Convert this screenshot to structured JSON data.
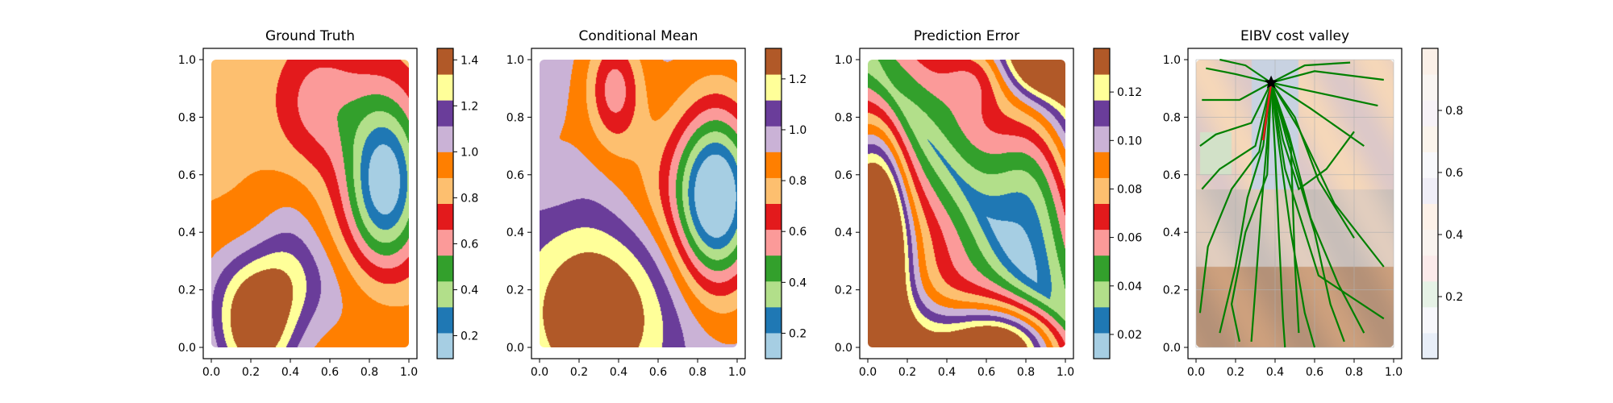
{
  "figure": {
    "panels_count": 4
  },
  "palette": {
    "paired12": [
      "#a6cee3",
      "#1f78b4",
      "#b2df8a",
      "#33a02c",
      "#fb9a99",
      "#e31a1c",
      "#fdbf6f",
      "#ff7f00",
      "#cab2d6",
      "#6a3d9a",
      "#ffff99",
      "#b15928"
    ],
    "path_color": "#008000",
    "highlight_color": "#e31a1c",
    "marker_color": "#000000"
  },
  "chart_data": [
    {
      "type": "heatmap",
      "title": "Ground Truth",
      "field": "ground_truth",
      "xlim": [
        0,
        1
      ],
      "ylim": [
        0,
        1
      ],
      "xticks": [
        "0.0",
        "0.2",
        "0.4",
        "0.6",
        "0.8",
        "1.0"
      ],
      "yticks": [
        "0.0",
        "0.2",
        "0.4",
        "0.6",
        "0.8",
        "1.0"
      ],
      "colorbar": {
        "range": [
          0.1,
          1.45
        ],
        "ticks": [
          "0.2",
          "0.4",
          "0.6",
          "0.8",
          "1.0",
          "1.2",
          "1.4"
        ],
        "tick_values": [
          0.2,
          0.4,
          0.6,
          0.8,
          1.0,
          1.2,
          1.4
        ]
      }
    },
    {
      "type": "heatmap",
      "title": "Conditional Mean",
      "field": "conditional_mean",
      "xlim": [
        0,
        1
      ],
      "ylim": [
        0,
        1
      ],
      "xticks": [
        "0.0",
        "0.2",
        "0.4",
        "0.6",
        "0.8",
        "1.0"
      ],
      "yticks": [
        "0.0",
        "0.2",
        "0.4",
        "0.6",
        "0.8",
        "1.0"
      ],
      "colorbar": {
        "range": [
          0.1,
          1.32
        ],
        "ticks": [
          "0.2",
          "0.4",
          "0.6",
          "0.8",
          "1.0",
          "1.2"
        ],
        "tick_values": [
          0.2,
          0.4,
          0.6,
          0.8,
          1.0,
          1.2
        ]
      }
    },
    {
      "type": "heatmap",
      "title": "Prediction Error",
      "field": "prediction_error",
      "xlim": [
        0,
        1
      ],
      "ylim": [
        0,
        1
      ],
      "xticks": [
        "0.0",
        "0.2",
        "0.4",
        "0.6",
        "0.8",
        "1.0"
      ],
      "yticks": [
        "0.0",
        "0.2",
        "0.4",
        "0.6",
        "0.8",
        "1.0"
      ],
      "colorbar": {
        "range": [
          0.01,
          0.138
        ],
        "ticks": [
          "0.02",
          "0.04",
          "0.06",
          "0.08",
          "0.10",
          "0.12"
        ],
        "tick_values": [
          0.02,
          0.04,
          0.06,
          0.08,
          0.1,
          0.12
        ]
      }
    },
    {
      "type": "heatmap",
      "title": "EIBV cost valley",
      "field": "cost_valley",
      "xlim": [
        0,
        1
      ],
      "ylim": [
        0,
        1
      ],
      "xticks": [
        "0.0",
        "0.2",
        "0.4",
        "0.6",
        "0.8",
        "1.0"
      ],
      "yticks": [
        "0.0",
        "0.2",
        "0.4",
        "0.6",
        "0.8",
        "1.0"
      ],
      "colorbar": {
        "range": [
          0.0,
          1.0
        ],
        "ticks": [
          "0.2",
          "0.4",
          "0.6",
          "0.8"
        ],
        "tick_values": [
          0.2,
          0.4,
          0.6,
          0.8
        ]
      },
      "start_point": {
        "x": 0.38,
        "y": 0.92
      },
      "selected_path": [
        [
          0.38,
          0.92
        ],
        [
          0.36,
          0.82
        ],
        [
          0.34,
          0.72
        ]
      ],
      "tree_paths": [
        [
          [
            0.38,
            0.92
          ],
          [
            0.2,
            0.95
          ],
          [
            0.05,
            0.97
          ]
        ],
        [
          [
            0.38,
            0.92
          ],
          [
            0.22,
            0.86
          ],
          [
            0.03,
            0.86
          ]
        ],
        [
          [
            0.38,
            0.92
          ],
          [
            0.25,
            0.98
          ],
          [
            0.12,
            1.0
          ]
        ],
        [
          [
            0.38,
            0.92
          ],
          [
            0.55,
            0.98
          ],
          [
            0.78,
            0.99
          ]
        ],
        [
          [
            0.38,
            0.92
          ],
          [
            0.6,
            0.96
          ],
          [
            0.95,
            0.93
          ]
        ],
        [
          [
            0.38,
            0.92
          ],
          [
            0.65,
            0.88
          ],
          [
            0.92,
            0.84
          ]
        ],
        [
          [
            0.38,
            0.92
          ],
          [
            0.58,
            0.83
          ],
          [
            0.85,
            0.7
          ]
        ],
        [
          [
            0.38,
            0.92
          ],
          [
            0.5,
            0.8
          ],
          [
            0.62,
            0.58
          ],
          [
            0.8,
            0.38
          ]
        ],
        [
          [
            0.38,
            0.92
          ],
          [
            0.52,
            0.76
          ],
          [
            0.7,
            0.5
          ],
          [
            0.95,
            0.28
          ]
        ],
        [
          [
            0.38,
            0.92
          ],
          [
            0.47,
            0.74
          ],
          [
            0.58,
            0.45
          ],
          [
            0.72,
            0.22
          ],
          [
            0.85,
            0.05
          ]
        ],
        [
          [
            0.38,
            0.92
          ],
          [
            0.46,
            0.72
          ],
          [
            0.6,
            0.4
          ],
          [
            0.68,
            0.15
          ],
          [
            0.75,
            0.02
          ]
        ],
        [
          [
            0.38,
            0.92
          ],
          [
            0.42,
            0.7
          ],
          [
            0.48,
            0.4
          ],
          [
            0.55,
            0.12
          ],
          [
            0.6,
            0.0
          ]
        ],
        [
          [
            0.38,
            0.92
          ],
          [
            0.4,
            0.68
          ],
          [
            0.42,
            0.38
          ],
          [
            0.44,
            0.1
          ],
          [
            0.45,
            0.0
          ]
        ],
        [
          [
            0.38,
            0.92
          ],
          [
            0.36,
            0.72
          ],
          [
            0.33,
            0.48
          ],
          [
            0.3,
            0.2
          ],
          [
            0.28,
            0.02
          ]
        ],
        [
          [
            0.38,
            0.92
          ],
          [
            0.34,
            0.7
          ],
          [
            0.26,
            0.52
          ],
          [
            0.2,
            0.28
          ],
          [
            0.12,
            0.05
          ]
        ],
        [
          [
            0.38,
            0.92
          ],
          [
            0.32,
            0.68
          ],
          [
            0.18,
            0.55
          ],
          [
            0.06,
            0.35
          ],
          [
            0.02,
            0.12
          ]
        ],
        [
          [
            0.38,
            0.92
          ],
          [
            0.3,
            0.7
          ],
          [
            0.12,
            0.62
          ],
          [
            0.03,
            0.55
          ]
        ],
        [
          [
            0.38,
            0.92
          ],
          [
            0.28,
            0.78
          ],
          [
            0.1,
            0.74
          ],
          [
            0.02,
            0.7
          ]
        ],
        [
          [
            0.38,
            0.92
          ],
          [
            0.44,
            0.72
          ],
          [
            0.52,
            0.55
          ],
          [
            0.66,
            0.62
          ],
          [
            0.8,
            0.75
          ]
        ],
        [
          [
            0.38,
            0.92
          ],
          [
            0.48,
            0.7
          ],
          [
            0.5,
            0.3
          ],
          [
            0.52,
            0.05
          ]
        ],
        [
          [
            0.38,
            0.92
          ],
          [
            0.36,
            0.6
          ],
          [
            0.25,
            0.4
          ],
          [
            0.18,
            0.15
          ],
          [
            0.22,
            0.02
          ]
        ],
        [
          [
            0.38,
            0.92
          ],
          [
            0.45,
            0.62
          ],
          [
            0.62,
            0.25
          ],
          [
            0.95,
            0.1
          ]
        ]
      ]
    }
  ]
}
